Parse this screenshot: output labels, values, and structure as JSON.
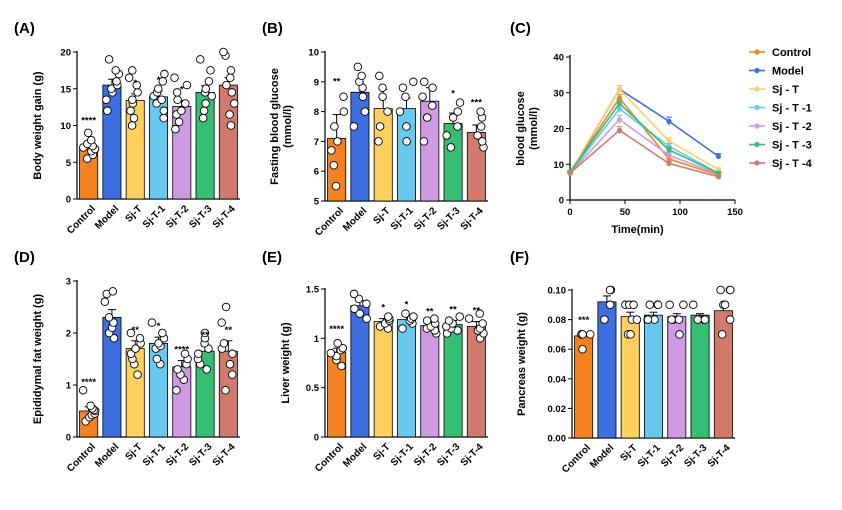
{
  "chart_data": [
    {
      "id": "A",
      "panel_label": "(A)",
      "type": "bar",
      "ylabel": "Body weight gain (g)",
      "ylim": [
        0,
        20
      ],
      "yticks": [
        0,
        5,
        10,
        15,
        20
      ],
      "categories": [
        "Control",
        "Model",
        "Sj-T",
        "Sj-T-1",
        "Sj-T-2",
        "Sj-T-3",
        "Sj-T-4"
      ],
      "colors": [
        "#F5821F",
        "#3D6FE0",
        "#FFD15C",
        "#67C8F0",
        "#CE9BE3",
        "#35BE74",
        "#D17A6C"
      ],
      "values": [
        6.8,
        15.5,
        13.4,
        13.9,
        12.6,
        14.5,
        15.5
      ],
      "errors": [
        0.5,
        0.8,
        0.9,
        0.8,
        0.8,
        0.9,
        1.0
      ],
      "points": [
        [
          5.5,
          6.0,
          6.5,
          6.8,
          7.0,
          7.2,
          7.5,
          8.0,
          9.0
        ],
        [
          12.0,
          13.5,
          14.5,
          15.0,
          15.5,
          16.0,
          17.0,
          17.5,
          19.0
        ],
        [
          10.0,
          11.0,
          12.0,
          13.0,
          13.5,
          14.5,
          15.5,
          16.5,
          17.5
        ],
        [
          11.0,
          12.0,
          13.0,
          13.5,
          14.0,
          14.5,
          15.0,
          16.0,
          17.0
        ],
        [
          9.5,
          10.5,
          11.5,
          12.0,
          13.0,
          13.5,
          14.5,
          15.5,
          16.5
        ],
        [
          11.0,
          12.0,
          13.0,
          14.0,
          14.5,
          15.0,
          16.0,
          17.5,
          19.0
        ],
        [
          10.0,
          11.5,
          13.0,
          14.5,
          15.5,
          16.5,
          17.5,
          19.5,
          20.0
        ]
      ],
      "significance": [
        "****",
        "",
        "*",
        "*",
        "*",
        "",
        ""
      ]
    },
    {
      "id": "B",
      "panel_label": "(B)",
      "type": "bar",
      "ylabel": "Fasting blood  glucose (mmol/l)",
      "ylim": [
        5,
        10
      ],
      "yticks": [
        5,
        6,
        7,
        8,
        9,
        10
      ],
      "categories": [
        "Control",
        "Model",
        "Sj-T",
        "Sj-T-1",
        "Sj-T-2",
        "Sj-T-3",
        "Sj-T-4"
      ],
      "colors": [
        "#F5821F",
        "#3D6FE0",
        "#FFD15C",
        "#67C8F0",
        "#CE9BE3",
        "#35BE74",
        "#D17A6C"
      ],
      "values": [
        7.1,
        8.65,
        8.1,
        8.1,
        8.35,
        7.6,
        7.3
      ],
      "errors": [
        0.8,
        0.35,
        0.65,
        0.35,
        0.45,
        0.35,
        0.25
      ],
      "points": [
        [
          5.5,
          6.2,
          6.7,
          7.0,
          7.5,
          8.0,
          8.5
        ],
        [
          7.5,
          8.0,
          8.5,
          8.8,
          9.0,
          9.2,
          9.5
        ],
        [
          7.0,
          7.5,
          8.0,
          8.5,
          8.8,
          9.2
        ],
        [
          7.0,
          7.5,
          8.0,
          8.5,
          8.8,
          9.0
        ],
        [
          7.0,
          7.8,
          8.2,
          8.5,
          8.8,
          9.0
        ],
        [
          6.8,
          7.2,
          7.5,
          7.8,
          8.0,
          8.3
        ],
        [
          6.8,
          7.0,
          7.2,
          7.5,
          7.8,
          8.0
        ]
      ],
      "significance": [
        "**",
        "",
        "",
        "",
        "",
        "*",
        "***"
      ]
    },
    {
      "id": "C",
      "panel_label": "(C)",
      "type": "line",
      "ylabel": "blood glucose (mmol/l)",
      "xlabel": "Time(min)",
      "x": [
        0,
        45,
        90,
        135
      ],
      "xlim": [
        0,
        150
      ],
      "xticks": [
        0,
        50,
        100,
        150
      ],
      "ylim": [
        0,
        40
      ],
      "yticks": [
        0,
        10,
        20,
        30,
        40
      ],
      "series": [
        {
          "name": "Control",
          "color": "#F5821F",
          "values": [
            7.8,
            28.5,
            11.5,
            7.0
          ],
          "errors": [
            0.3,
            1.0,
            0.8,
            0.3
          ]
        },
        {
          "name": "Model",
          "color": "#3D6FE0",
          "values": [
            7.5,
            31.0,
            22.0,
            12.2
          ],
          "errors": [
            0.3,
            1.0,
            1.2,
            0.8
          ]
        },
        {
          "name": "Sj - T",
          "color": "#FFD15C",
          "values": [
            7.8,
            31.0,
            16.5,
            8.5
          ],
          "errors": [
            0.3,
            1.0,
            1.0,
            0.5
          ]
        },
        {
          "name": "Sj - T -1",
          "color": "#67C8F0",
          "values": [
            7.5,
            25.5,
            15.0,
            7.5
          ],
          "errors": [
            0.3,
            1.0,
            0.8,
            0.4
          ]
        },
        {
          "name": "Sj - T -2",
          "color": "#CE9BE3",
          "values": [
            7.5,
            22.5,
            12.5,
            7.3
          ],
          "errors": [
            0.3,
            1.2,
            0.8,
            0.4
          ]
        },
        {
          "name": "Sj - T -3",
          "color": "#35BE74",
          "values": [
            7.8,
            27.0,
            14.0,
            7.5
          ],
          "errors": [
            0.3,
            1.0,
            0.8,
            0.4
          ]
        },
        {
          "name": "Sj - T -4",
          "color": "#D17A6C",
          "values": [
            7.5,
            19.5,
            10.2,
            6.5
          ],
          "errors": [
            0.3,
            1.0,
            0.6,
            0.3
          ]
        }
      ]
    },
    {
      "id": "D",
      "panel_label": "(D)",
      "type": "bar",
      "ylabel": "Epididymal fat weight (g)",
      "ylim": [
        0,
        3
      ],
      "yticks": [
        0,
        1,
        2,
        3
      ],
      "categories": [
        "Control",
        "Model",
        "Sj-T",
        "Sj-T-1",
        "Sj-T-2",
        "Sj-T-3",
        "Sj-T-4"
      ],
      "colors": [
        "#F5821F",
        "#3D6FE0",
        "#FFD15C",
        "#67C8F0",
        "#CE9BE3",
        "#35BE74",
        "#D17A6C"
      ],
      "values": [
        0.5,
        2.3,
        1.7,
        1.8,
        1.35,
        1.65,
        1.65
      ],
      "errors": [
        0.08,
        0.15,
        0.15,
        0.12,
        0.12,
        0.1,
        0.2
      ],
      "points": [
        [
          0.3,
          0.38,
          0.42,
          0.45,
          0.5,
          0.52,
          0.55,
          0.6,
          0.9
        ],
        [
          1.9,
          2.0,
          2.1,
          2.2,
          2.3,
          2.6,
          2.75,
          2.8
        ],
        [
          1.2,
          1.4,
          1.5,
          1.6,
          1.7,
          1.8,
          1.9,
          2.0
        ],
        [
          1.4,
          1.5,
          1.7,
          1.75,
          1.8,
          1.9,
          2.0,
          2.2
        ],
        [
          0.9,
          1.1,
          1.2,
          1.3,
          1.4,
          1.5,
          1.6
        ],
        [
          1.3,
          1.4,
          1.5,
          1.6,
          1.7,
          1.8,
          1.9,
          2.0
        ],
        [
          0.9,
          1.2,
          1.4,
          1.6,
          1.7,
          1.8,
          2.2,
          2.5
        ]
      ],
      "significance": [
        "****",
        "",
        "**",
        "*",
        "****",
        "**",
        "**"
      ]
    },
    {
      "id": "E",
      "panel_label": "(E)",
      "type": "bar",
      "ylabel": "Liver weight (g)",
      "ylim": [
        0,
        1.5
      ],
      "yticks": [
        0.0,
        0.5,
        1.0,
        1.5
      ],
      "categories": [
        "Control",
        "Model",
        "Sj-T",
        "Sj-T-1",
        "Sj-T-2",
        "Sj-T-3",
        "Sj-T-4"
      ],
      "colors": [
        "#F5821F",
        "#3D6FE0",
        "#FFD15C",
        "#67C8F0",
        "#CE9BE3",
        "#35BE74",
        "#D17A6C"
      ],
      "values": [
        0.86,
        1.33,
        1.17,
        1.19,
        1.13,
        1.14,
        1.12
      ],
      "errors": [
        0.04,
        0.05,
        0.03,
        0.04,
        0.03,
        0.04,
        0.05
      ],
      "points": [
        [
          0.72,
          0.78,
          0.82,
          0.85,
          0.88,
          0.9,
          0.95
        ],
        [
          1.2,
          1.25,
          1.3,
          1.35,
          1.4,
          1.45
        ],
        [
          1.1,
          1.12,
          1.15,
          1.18,
          1.2,
          1.22
        ],
        [
          1.1,
          1.15,
          1.18,
          1.2,
          1.22,
          1.25
        ],
        [
          1.05,
          1.08,
          1.1,
          1.12,
          1.15,
          1.18,
          1.2
        ],
        [
          1.05,
          1.08,
          1.1,
          1.12,
          1.15,
          1.18,
          1.22
        ],
        [
          1.0,
          1.05,
          1.08,
          1.1,
          1.15,
          1.2,
          1.25
        ]
      ],
      "significance": [
        "****",
        "",
        "*",
        "*",
        "**",
        "**",
        "**"
      ]
    },
    {
      "id": "F",
      "panel_label": "(F)",
      "type": "bar",
      "ylabel": "Pancreas weight (g)",
      "ylim": [
        0,
        0.1
      ],
      "yticks": [
        0.0,
        0.02,
        0.04,
        0.06,
        0.08,
        0.1
      ],
      "ytick_labels": [
        "0.00",
        "0.02",
        "0.04",
        "0.06",
        "0.08",
        "0.10"
      ],
      "categories": [
        "Control",
        "Model",
        "Sj-T",
        "Sj-T-1",
        "Sj-T-2",
        "Sj-T-3",
        "Sj-T-4"
      ],
      "colors": [
        "#F5821F",
        "#3D6FE0",
        "#FFD15C",
        "#67C8F0",
        "#CE9BE3",
        "#35BE74",
        "#D17A6C"
      ],
      "values": [
        0.069,
        0.092,
        0.082,
        0.083,
        0.082,
        0.083,
        0.086
      ],
      "errors": [
        0.002,
        0.004,
        0.003,
        0.002,
        0.002,
        0.001,
        0.003
      ],
      "points": [
        [
          0.06,
          0.07,
          0.07,
          0.07,
          0.07
        ],
        [
          0.08,
          0.09,
          0.1,
          0.1
        ],
        [
          0.07,
          0.07,
          0.08,
          0.08,
          0.09,
          0.09,
          0.09
        ],
        [
          0.08,
          0.08,
          0.08,
          0.09,
          0.09,
          0.09
        ],
        [
          0.07,
          0.08,
          0.08,
          0.08,
          0.09,
          0.09
        ],
        [
          0.08,
          0.08,
          0.08,
          0.09
        ],
        [
          0.07,
          0.08,
          0.09,
          0.09,
          0.1,
          0.1,
          0.1
        ]
      ],
      "significance": [
        "***",
        "",
        "",
        "",
        "",
        "",
        ""
      ]
    }
  ]
}
